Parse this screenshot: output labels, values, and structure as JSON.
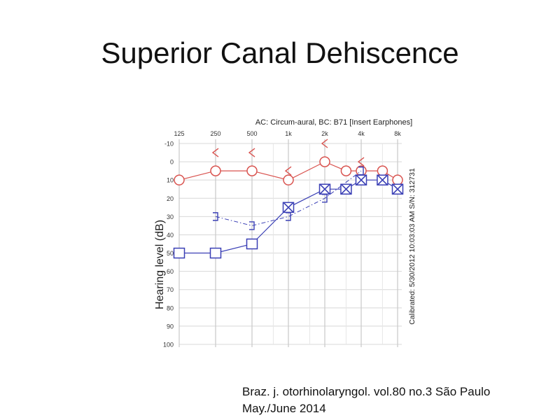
{
  "slide": {
    "title": "Superior Canal Dehiscence",
    "citation_line1": "Braz. j. otorhinolaryngol. vol.80 no.3 São Paulo",
    "citation_line2": "May./June 2014"
  },
  "chart_data": {
    "type": "scatter",
    "title": "AC: Circum-aural, BC: B71 [Insert Earphones]",
    "ylabel": "Hearing level (dB)",
    "side_note": "Calibrated: 5/30/2012 10:03:03 AM  S/N: 312731",
    "x_ticks": [
      "125",
      "250",
      "500",
      "1k",
      "2k",
      "4k",
      "8k"
    ],
    "x_freqs": [
      125,
      250,
      500,
      1000,
      2000,
      4000,
      8000
    ],
    "y_ticks": [
      -10,
      0,
      10,
      20,
      30,
      40,
      50,
      60,
      70,
      80,
      90,
      100
    ],
    "ylim": [
      -10,
      100
    ],
    "y_inverted": true,
    "x_scale": "log2",
    "colors": {
      "right": "#d9534f",
      "left": "#3a3fb5",
      "grid": "#d8d8d8",
      "axis": "#666666"
    },
    "series": [
      {
        "symbol": "circle",
        "color": "#d9534f",
        "connected": true,
        "dashed": false,
        "points": [
          [
            125,
            10
          ],
          [
            250,
            5
          ],
          [
            500,
            5
          ],
          [
            1000,
            10
          ],
          [
            2000,
            0
          ],
          [
            3000,
            5
          ],
          [
            4000,
            5
          ],
          [
            6000,
            5
          ],
          [
            8000,
            10
          ]
        ]
      },
      {
        "symbol": "left-chevron",
        "color": "#d9534f",
        "connected": false,
        "dashed": false,
        "points": [
          [
            250,
            -5
          ],
          [
            500,
            -5
          ],
          [
            1000,
            5
          ],
          [
            2000,
            -10
          ],
          [
            4000,
            0
          ]
        ]
      },
      {
        "symbol": "square",
        "color": "#3a3fb5",
        "connected": true,
        "dashed": false,
        "points": [
          [
            125,
            50
          ],
          [
            250,
            50
          ],
          [
            500,
            45
          ],
          [
            1000,
            25
          ],
          [
            2000,
            15
          ],
          [
            3000,
            15
          ],
          [
            4000,
            10
          ],
          [
            6000,
            10
          ],
          [
            8000,
            15
          ]
        ]
      },
      {
        "symbol": "x",
        "color": "#3a3fb5",
        "connected": false,
        "dashed": false,
        "points": [
          [
            1000,
            25
          ],
          [
            2000,
            15
          ],
          [
            3000,
            15
          ],
          [
            4000,
            10
          ],
          [
            6000,
            10
          ],
          [
            8000,
            15
          ]
        ]
      },
      {
        "symbol": "right-bracket",
        "color": "#3a3fb5",
        "connected": true,
        "dashed": true,
        "points": [
          [
            250,
            30
          ],
          [
            500,
            35
          ],
          [
            1000,
            30
          ],
          [
            2000,
            20
          ],
          [
            4000,
            5
          ]
        ]
      }
    ]
  }
}
